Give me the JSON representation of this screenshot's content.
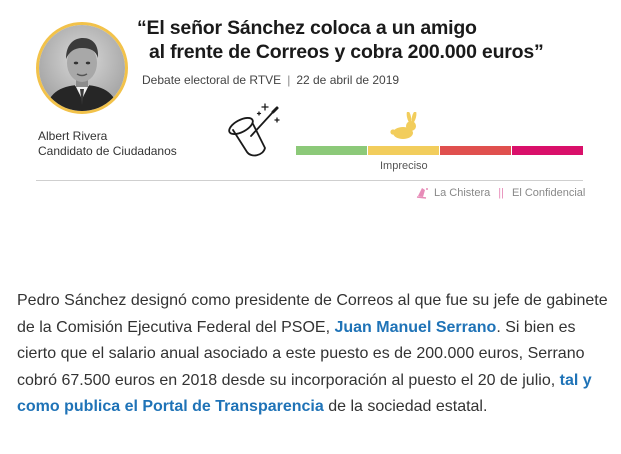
{
  "card": {
    "quote_line1": "“El señor Sánchez coloca a un amigo",
    "quote_line2": "al frente de Correos y cobra 200.000 euros”",
    "source": "Debate electoral de RTVE",
    "date": "22 de abril de 2019",
    "separator": "|",
    "person_name": "Albert Rivera",
    "person_role": "Candidato de Ciudadanos",
    "verdict": "Impreciso",
    "brand_name": "La Chistera",
    "brand_separator": "||",
    "brand_publisher": "El Confidencial",
    "scale_colors": [
      "#8cc979",
      "#f2cd5c",
      "#e0504e",
      "#d9106a"
    ],
    "icons": {
      "magic": "magic-hat-icon",
      "rabbit": "rabbit-icon",
      "logo": "chistera-logo-icon"
    }
  },
  "article": {
    "p1": "Pedro Sánchez designó como presidente de Correos al que fue su jefe de gabinete de la Comisión Ejecutiva Federal del PSOE, ",
    "link1": "Juan Manuel Serrano",
    "p2": ". Si bien es cierto que el salario anual asociado a este puesto es de 200.000 euros, Serrano cobró 67.500 euros en 2018 desde su incorporación al puesto el 20 de julio, ",
    "link2": "tal y como publica el Portal de Transparencia",
    "p3": " de la sociedad estatal.",
    "link_color": "#1f73b7"
  }
}
